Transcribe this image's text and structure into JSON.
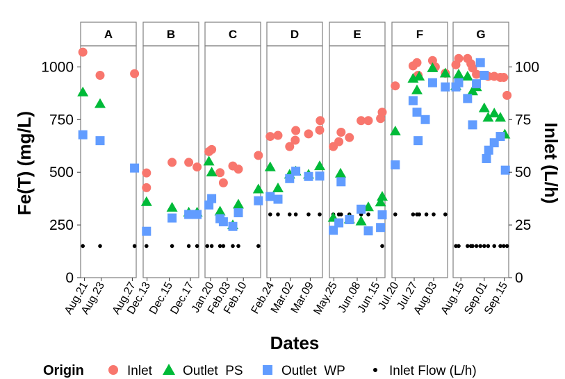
{
  "chart_data": {
    "type": "scatter",
    "ylabel": "Fe(T) (mg/L)",
    "y2label": "Inlet (L/h)",
    "xlabel": "Dates",
    "ylim": [
      0,
      1100
    ],
    "y_ticks": [
      0,
      250,
      500,
      750,
      1000
    ],
    "y2_ticks": [
      0,
      25,
      50,
      75,
      100
    ],
    "y2_scale_note": "secondary axis = primary / 10",
    "legend": {
      "position": "bottom",
      "title": "Origin",
      "items": [
        {
          "label": "Inlet",
          "shape": "circle",
          "color": "#F8766D"
        },
        {
          "label": "Outlet  PS",
          "shape": "triangle",
          "color": "#00BA38"
        },
        {
          "label": "Outlet  WP",
          "shape": "square",
          "color": "#619CFF"
        },
        {
          "label": "Inlet Flow (L/h)",
          "shape": "dot",
          "color": "#000000"
        }
      ]
    },
    "colors": {
      "inlet": "#F8766D",
      "ps": "#00BA38",
      "wp": "#619CFF",
      "flow": "#000000",
      "strip": "#ffffff",
      "panel_border": "#7f7f7f"
    },
    "panels": [
      {
        "label": "A",
        "x_ticks": [
          "Aug.21",
          "Aug.23",
          "Aug.27"
        ],
        "tick_pos": [
          0.07,
          0.37,
          0.93
        ],
        "inlet": [
          [
            0.04,
            1070
          ],
          [
            0.35,
            960
          ],
          [
            0.97,
            968
          ]
        ],
        "ps": [
          [
            0.04,
            880
          ],
          [
            0.35,
            825
          ]
        ],
        "wp": [
          [
            0.04,
            678
          ],
          [
            0.35,
            650
          ],
          [
            0.97,
            520
          ]
        ],
        "flow": [
          [
            0.04,
            150
          ],
          [
            0.35,
            150
          ],
          [
            0.97,
            150
          ]
        ]
      },
      {
        "label": "B",
        "x_ticks": [
          "Dec.13",
          "Dec.15",
          "Dec.17"
        ],
        "tick_pos": [
          0.07,
          0.47,
          0.85
        ],
        "inlet": [
          [
            0.06,
            497
          ],
          [
            0.06,
            427
          ],
          [
            0.52,
            547
          ],
          [
            0.82,
            547
          ],
          [
            0.97,
            525
          ]
        ],
        "ps": [
          [
            0.06,
            360
          ],
          [
            0.52,
            333
          ],
          [
            0.82,
            310
          ],
          [
            0.97,
            310
          ]
        ],
        "wp": [
          [
            0.06,
            220
          ],
          [
            0.52,
            283
          ],
          [
            0.82,
            300
          ],
          [
            0.97,
            300
          ]
        ],
        "flow": [
          [
            0.06,
            150
          ],
          [
            0.52,
            150
          ],
          [
            0.82,
            150
          ],
          [
            0.97,
            150
          ]
        ]
      },
      {
        "label": "C",
        "x_ticks": [
          "Jan.20",
          "Feb.03",
          "Feb.10"
        ],
        "tick_pos": [
          0.1,
          0.4,
          0.69
        ],
        "inlet": [
          [
            0.07,
            598
          ],
          [
            0.12,
            608
          ],
          [
            0.27,
            498
          ],
          [
            0.33,
            450
          ],
          [
            0.5,
            530
          ],
          [
            0.6,
            515
          ],
          [
            0.96,
            580
          ]
        ],
        "ps": [
          [
            0.07,
            552
          ],
          [
            0.12,
            500
          ],
          [
            0.27,
            315
          ],
          [
            0.5,
            250
          ],
          [
            0.6,
            348
          ],
          [
            0.96,
            420
          ]
        ],
        "wp": [
          [
            0.07,
            345
          ],
          [
            0.12,
            375
          ],
          [
            0.27,
            280
          ],
          [
            0.33,
            265
          ],
          [
            0.5,
            243
          ],
          [
            0.6,
            308
          ],
          [
            0.96,
            365
          ]
        ],
        "flow": [
          [
            0.04,
            150
          ],
          [
            0.12,
            150
          ],
          [
            0.27,
            150
          ],
          [
            0.33,
            150
          ],
          [
            0.5,
            150
          ],
          [
            0.6,
            150
          ],
          [
            0.96,
            150
          ]
        ]
      },
      {
        "label": "D",
        "x_ticks": [
          "Feb.24",
          "Mar.02",
          "Mar.09"
        ],
        "tick_pos": [
          0.07,
          0.42,
          0.78
        ],
        "inlet": [
          [
            0.06,
            670
          ],
          [
            0.2,
            675
          ],
          [
            0.41,
            622
          ],
          [
            0.51,
            652
          ],
          [
            0.52,
            698
          ],
          [
            0.75,
            682
          ],
          [
            0.95,
            700
          ],
          [
            0.96,
            745
          ]
        ],
        "ps": [
          [
            0.06,
            525
          ],
          [
            0.2,
            425
          ],
          [
            0.41,
            490
          ],
          [
            0.52,
            505
          ],
          [
            0.75,
            490
          ],
          [
            0.95,
            530
          ]
        ],
        "wp": [
          [
            0.06,
            385
          ],
          [
            0.2,
            372
          ],
          [
            0.41,
            470
          ],
          [
            0.52,
            505
          ],
          [
            0.75,
            480
          ],
          [
            0.95,
            482
          ]
        ],
        "flow": [
          [
            0.06,
            300
          ],
          [
            0.2,
            300
          ],
          [
            0.41,
            300
          ],
          [
            0.52,
            300
          ],
          [
            0.75,
            300
          ],
          [
            0.95,
            300
          ]
        ]
      },
      {
        "label": "E",
        "x_ticks": [
          "May.25",
          "Jun.08",
          "Jun.15"
        ],
        "tick_pos": [
          0.08,
          0.5,
          0.85
        ],
        "inlet": [
          [
            0.07,
            622
          ],
          [
            0.17,
            645
          ],
          [
            0.21,
            690
          ],
          [
            0.36,
            665
          ],
          [
            0.57,
            745
          ],
          [
            0.7,
            745
          ],
          [
            0.92,
            755
          ],
          [
            0.95,
            785
          ]
        ],
        "ps": [
          [
            0.07,
            285
          ],
          [
            0.2,
            495
          ],
          [
            0.36,
            278
          ],
          [
            0.57,
            268
          ],
          [
            0.7,
            335
          ],
          [
            0.92,
            358
          ],
          [
            0.95,
            385
          ]
        ],
        "wp": [
          [
            0.07,
            225
          ],
          [
            0.17,
            260
          ],
          [
            0.21,
            455
          ],
          [
            0.36,
            275
          ],
          [
            0.57,
            325
          ],
          [
            0.7,
            222
          ],
          [
            0.92,
            238
          ],
          [
            0.95,
            298
          ]
        ],
        "flow": [
          [
            0.07,
            300
          ],
          [
            0.17,
            300
          ],
          [
            0.21,
            300
          ],
          [
            0.36,
            300
          ],
          [
            0.57,
            300
          ],
          [
            0.7,
            300
          ],
          [
            0.92,
            300
          ],
          [
            0.95,
            150
          ]
        ]
      },
      {
        "label": "F",
        "x_ticks": [
          "Jul.20",
          "Jul.27",
          "Aug.03"
        ],
        "tick_pos": [
          0.06,
          0.4,
          0.75
        ],
        "inlet": [
          [
            0.06,
            910
          ],
          [
            0.38,
            1005
          ],
          [
            0.45,
            1020
          ],
          [
            0.47,
            960
          ],
          [
            0.73,
            1030
          ],
          [
            0.78,
            1000
          ],
          [
            0.96,
            970
          ]
        ],
        "ps": [
          [
            0.06,
            695
          ],
          [
            0.38,
            945
          ],
          [
            0.45,
            890
          ],
          [
            0.49,
            955
          ],
          [
            0.73,
            995
          ],
          [
            0.96,
            970
          ]
        ],
        "wp": [
          [
            0.06,
            535
          ],
          [
            0.38,
            840
          ],
          [
            0.45,
            785
          ],
          [
            0.47,
            650
          ],
          [
            0.6,
            750
          ],
          [
            0.73,
            925
          ],
          [
            0.96,
            905
          ]
        ],
        "flow": [
          [
            0.06,
            300
          ],
          [
            0.38,
            300
          ],
          [
            0.45,
            300
          ],
          [
            0.49,
            300
          ],
          [
            0.62,
            300
          ],
          [
            0.75,
            300
          ],
          [
            0.96,
            300
          ]
        ]
      },
      {
        "label": "G",
        "x_ticks": [
          "Aug.15",
          "Sep.01",
          "Sep.15"
        ],
        "tick_pos": [
          0.14,
          0.56,
          0.92
        ],
        "inlet": [
          [
            0.05,
            1010
          ],
          [
            0.1,
            1040
          ],
          [
            0.26,
            1040
          ],
          [
            0.32,
            1015
          ],
          [
            0.35,
            995
          ],
          [
            0.42,
            965
          ],
          [
            0.56,
            960
          ],
          [
            0.63,
            955
          ],
          [
            0.74,
            955
          ],
          [
            0.85,
            950
          ],
          [
            0.91,
            950
          ],
          [
            0.97,
            865
          ]
        ],
        "ps": [
          [
            0.05,
            910
          ],
          [
            0.1,
            965
          ],
          [
            0.26,
            955
          ],
          [
            0.35,
            885
          ],
          [
            0.42,
            905
          ],
          [
            0.56,
            805
          ],
          [
            0.63,
            760
          ],
          [
            0.74,
            780
          ],
          [
            0.85,
            760
          ],
          [
            0.93,
            680
          ]
        ],
        "wp": [
          [
            0.05,
            905
          ],
          [
            0.1,
            925
          ],
          [
            0.26,
            850
          ],
          [
            0.35,
            725
          ],
          [
            0.42,
            920
          ],
          [
            0.49,
            1020
          ],
          [
            0.56,
            960
          ],
          [
            0.6,
            565
          ],
          [
            0.64,
            605
          ],
          [
            0.74,
            640
          ],
          [
            0.85,
            670
          ],
          [
            0.94,
            510
          ]
        ],
        "flow": [
          [
            0.05,
            150
          ],
          [
            0.1,
            150
          ],
          [
            0.26,
            150
          ],
          [
            0.32,
            150
          ],
          [
            0.35,
            150
          ],
          [
            0.42,
            150
          ],
          [
            0.49,
            150
          ],
          [
            0.56,
            150
          ],
          [
            0.63,
            150
          ],
          [
            0.74,
            150
          ],
          [
            0.85,
            150
          ],
          [
            0.91,
            150
          ],
          [
            0.97,
            150
          ]
        ]
      }
    ]
  }
}
